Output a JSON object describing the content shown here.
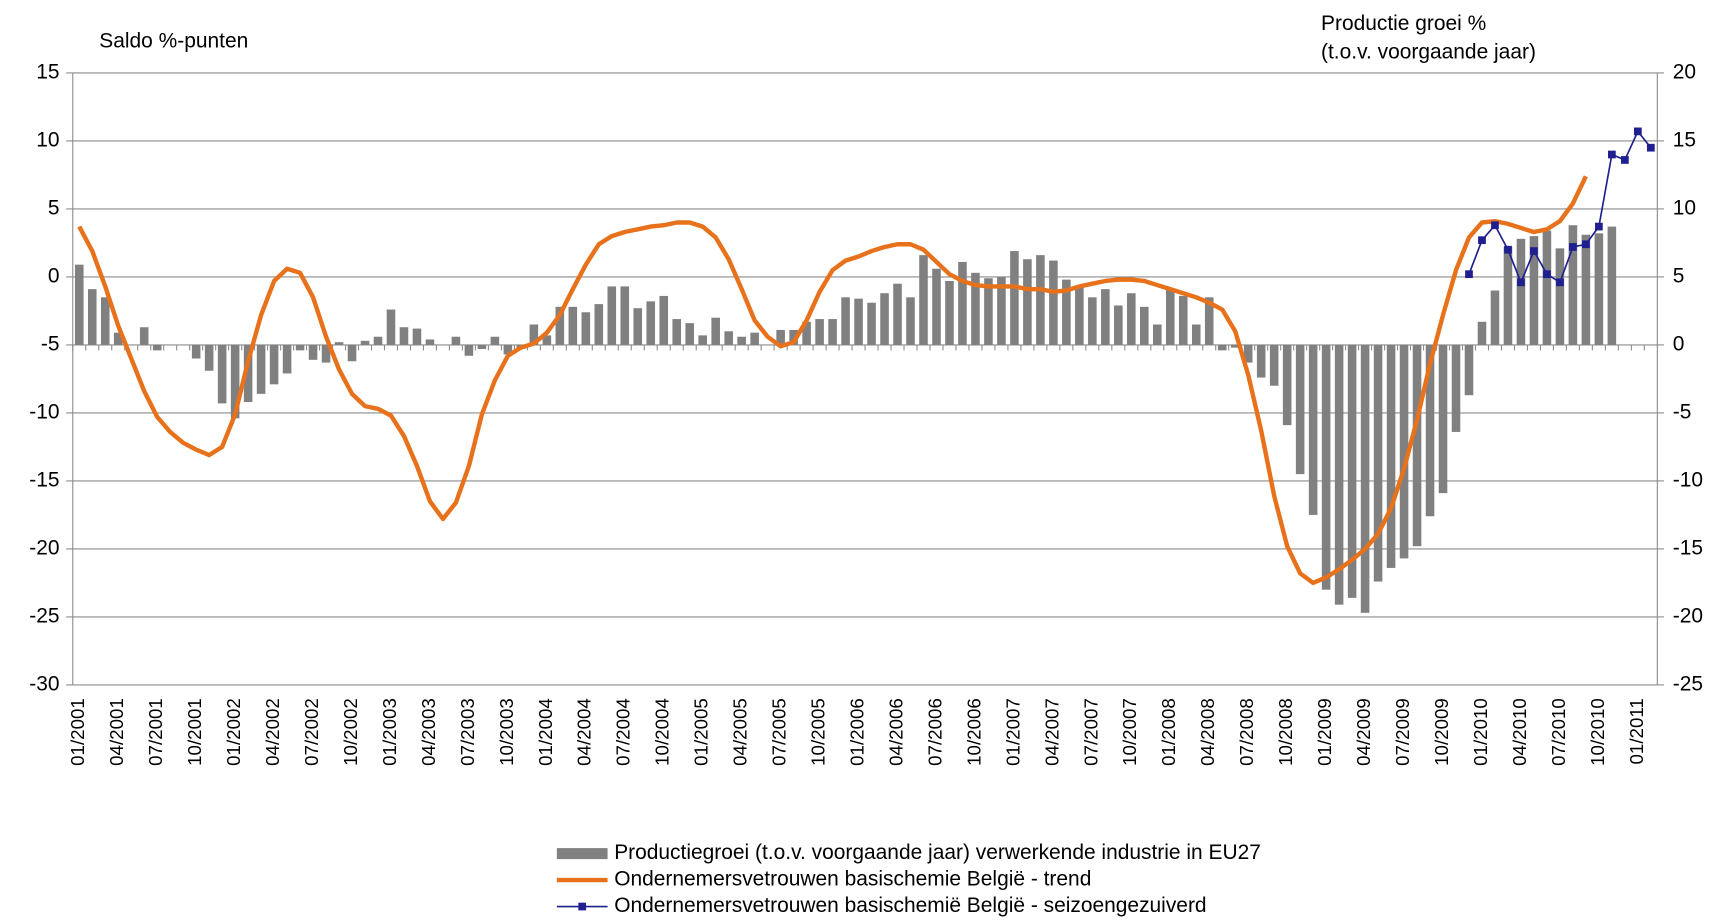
{
  "chart_data": {
    "type": "bar-line",
    "y_label": "Saldo %-punten",
    "y2_label": [
      "Productie groei %",
      "(t.o.v. voorgaande jaar)"
    ],
    "categories": [
      "01/2001",
      null,
      null,
      "04/2001",
      null,
      null,
      "07/2001",
      null,
      null,
      "10/2001",
      null,
      null,
      "01/2002",
      null,
      null,
      "04/2002",
      null,
      null,
      "07/2002",
      null,
      null,
      "10/2002",
      null,
      null,
      "01/2003",
      null,
      null,
      "04/2003",
      null,
      null,
      "07/2003",
      null,
      null,
      "10/2003",
      null,
      null,
      "01/2004",
      null,
      null,
      "04/2004",
      null,
      null,
      "07/2004",
      null,
      null,
      "10/2004",
      null,
      null,
      "01/2005",
      null,
      null,
      "04/2005",
      null,
      null,
      "07/2005",
      null,
      null,
      "10/2005",
      null,
      null,
      "01/2006",
      null,
      null,
      "04/2006",
      null,
      null,
      "07/2006",
      null,
      null,
      "10/2006",
      null,
      null,
      "01/2007",
      null,
      null,
      "04/2007",
      null,
      null,
      "07/2007",
      null,
      null,
      "10/2007",
      null,
      null,
      "01/2008",
      null,
      null,
      "04/2008",
      null,
      null,
      "07/2008",
      null,
      null,
      "10/2008",
      null,
      null,
      "01/2009",
      null,
      null,
      "04/2009",
      null,
      null,
      "07/2009",
      null,
      null,
      "10/2009",
      null,
      null,
      "01/2010",
      null,
      null,
      "04/2010",
      null,
      null,
      "07/2010",
      null,
      null,
      "10/2010",
      null,
      null,
      "01/2011",
      null
    ],
    "series": [
      {
        "name": "Productiegroei (t.o.v. voorgaande jaar) verwerkende industrie in EU27",
        "kind": "bar",
        "axis": "y2",
        "color": "#808080",
        "values": [
          5.9,
          4.1,
          3.5,
          0.9,
          0,
          1.3,
          -0.4,
          0,
          0,
          -1.0,
          -1.9,
          -4.3,
          -5.4,
          -4.2,
          -3.6,
          -2.9,
          -2.1,
          -0.4,
          -1.1,
          -1.3,
          0.2,
          -1.2,
          0.3,
          0.6,
          2.6,
          1.3,
          1.2,
          0.4,
          0,
          0.6,
          -0.8,
          -0.3,
          0.6,
          -0.7,
          -0.3,
          1.5,
          0.7,
          2.8,
          2.8,
          2.4,
          3.0,
          4.3,
          4.3,
          2.7,
          3.2,
          3.6,
          1.9,
          1.6,
          0.7,
          2.0,
          1.0,
          0.6,
          0.9,
          0,
          1.1,
          1.1,
          1.7,
          1.9,
          1.9,
          3.5,
          3.4,
          3.1,
          3.8,
          4.5,
          3.5,
          6.6,
          5.6,
          4.7,
          6.1,
          5.3,
          4.9,
          5.0,
          6.9,
          6.3,
          6.6,
          6.2,
          4.8,
          4.3,
          3.5,
          4.1,
          2.9,
          3.8,
          2.8,
          1.5,
          4.1,
          3.6,
          1.5,
          3.5,
          -0.4,
          -0.2,
          -1.3,
          -2.4,
          -3.0,
          -5.9,
          -9.5,
          -12.5,
          -18.0,
          -19.1,
          -18.6,
          -19.7,
          -17.4,
          -16.4,
          -15.7,
          -14.8,
          -12.6,
          -10.9,
          -6.4,
          -3.7,
          1.7,
          4.0,
          7.2,
          7.8,
          8.0,
          8.4,
          7.1,
          8.8,
          8.1,
          8.2,
          8.7,
          null,
          null,
          null
        ]
      },
      {
        "name": "Ondernemersvetrouwen basischemie België - trend",
        "kind": "line",
        "axis": "y",
        "color": "#E8711C",
        "values": [
          3.7,
          1.9,
          -0.7,
          -3.6,
          -6.0,
          -8.4,
          -10.3,
          -11.4,
          -12.2,
          -12.7,
          -13.1,
          -12.5,
          -10.1,
          -6.2,
          -2.8,
          -0.3,
          0.6,
          0.3,
          -1.5,
          -4.4,
          -6.8,
          -8.6,
          -9.5,
          -9.7,
          -10.2,
          -11.7,
          -13.9,
          -16.5,
          -17.8,
          -16.6,
          -13.9,
          -10.1,
          -7.6,
          -5.8,
          -5.2,
          -4.9,
          -4.1,
          -2.8,
          -0.9,
          0.9,
          2.4,
          3.0,
          3.3,
          3.5,
          3.7,
          3.8,
          4.0,
          4.0,
          3.7,
          2.9,
          1.3,
          -0.9,
          -3.2,
          -4.4,
          -5.1,
          -4.8,
          -3.2,
          -1.1,
          0.5,
          1.2,
          1.5,
          1.9,
          2.2,
          2.4,
          2.4,
          2.0,
          1.1,
          0.2,
          -0.3,
          -0.6,
          -0.7,
          -0.7,
          -0.7,
          -0.9,
          -0.9,
          -1.1,
          -1.0,
          -0.7,
          -0.5,
          -0.3,
          -0.2,
          -0.2,
          -0.3,
          -0.6,
          -0.9,
          -1.2,
          -1.5,
          -1.9,
          -2.4,
          -4.0,
          -7.2,
          -11.3,
          -16.1,
          -19.8,
          -21.8,
          -22.5,
          -22.1,
          -21.5,
          -20.8,
          -20.0,
          -18.9,
          -17.0,
          -14.1,
          -10.5,
          -6.4,
          -2.8,
          0.5,
          2.9,
          4.0,
          4.1,
          3.9,
          3.6,
          3.3,
          3.5,
          4.1,
          5.4,
          7.4,
          null,
          null,
          null,
          null,
          null
        ]
      },
      {
        "name": "Ondernemersvetrouwen basischemië België - seizoengezuiverd",
        "kind": "line-marker",
        "axis": "y",
        "color": "#1F1F8F",
        "values": [
          null,
          null,
          null,
          null,
          null,
          null,
          null,
          null,
          null,
          null,
          null,
          null,
          null,
          null,
          null,
          null,
          null,
          null,
          null,
          null,
          null,
          null,
          null,
          null,
          null,
          null,
          null,
          null,
          null,
          null,
          null,
          null,
          null,
          null,
          null,
          null,
          null,
          null,
          null,
          null,
          null,
          null,
          null,
          null,
          null,
          null,
          null,
          null,
          null,
          null,
          null,
          null,
          null,
          null,
          null,
          null,
          null,
          null,
          null,
          null,
          null,
          null,
          null,
          null,
          null,
          null,
          null,
          null,
          null,
          null,
          null,
          null,
          null,
          null,
          null,
          null,
          null,
          null,
          null,
          null,
          null,
          null,
          null,
          null,
          null,
          null,
          null,
          null,
          null,
          null,
          null,
          null,
          null,
          null,
          null,
          null,
          null,
          null,
          null,
          null,
          null,
          null,
          null,
          null,
          null,
          null,
          null,
          0.2,
          2.7,
          3.8,
          2.0,
          -0.4,
          1.9,
          0.2,
          -0.4,
          2.2,
          2.4,
          3.7,
          9.0,
          8.6,
          10.7,
          9.5
        ]
      }
    ],
    "ylim": [
      -30,
      15
    ],
    "yticks": [
      -30,
      -25,
      -20,
      -15,
      -10,
      -5,
      0,
      5,
      10,
      15
    ],
    "y2lim": [
      -25,
      20
    ],
    "y2ticks": [
      -25,
      -20,
      -15,
      -10,
      -5,
      0,
      5,
      10,
      15,
      20
    ],
    "grid": true,
    "legend": "bottom"
  }
}
